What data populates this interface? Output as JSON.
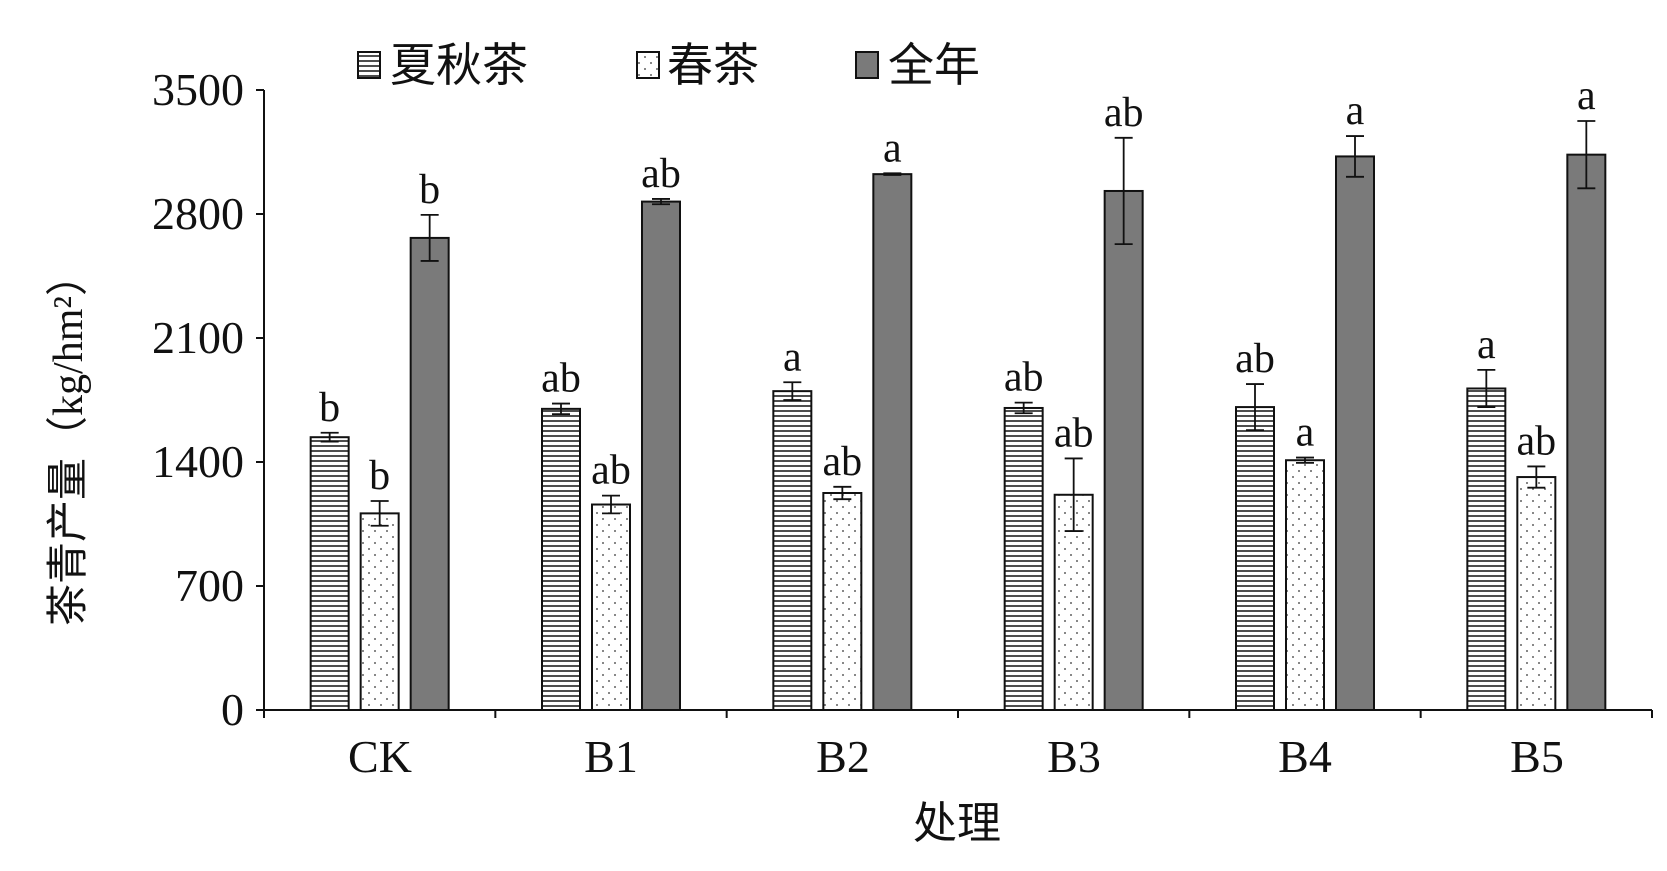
{
  "chart_data": {
    "type": "bar",
    "ylabel": "茶青产量（kg/hm²）",
    "xlabel": "处理",
    "categories": [
      "CK",
      "B1",
      "B2",
      "B3",
      "B4",
      "B5"
    ],
    "ylim": [
      0,
      3500
    ],
    "yticks": [
      "0",
      "700",
      "1400",
      "2100",
      "2800",
      "3500"
    ],
    "legend_position": "top",
    "series": [
      {
        "name": "夏秋茶",
        "pattern": "horizontal-lines",
        "color": "#ffffff",
        "values": [
          1540,
          1700,
          1800,
          1705,
          1710,
          1815
        ],
        "errors": [
          25,
          30,
          50,
          30,
          130,
          105
        ],
        "labels": [
          "b",
          "ab",
          "a",
          "ab",
          "ab",
          "a"
        ]
      },
      {
        "name": "春茶",
        "pattern": "dots",
        "color": "#ffffff",
        "values": [
          1110,
          1160,
          1225,
          1215,
          1410,
          1315
        ],
        "errors": [
          70,
          50,
          35,
          205,
          15,
          60
        ],
        "labels": [
          "b",
          "ab",
          "ab",
          "ab",
          "a",
          "ab"
        ]
      },
      {
        "name": "全年",
        "pattern": "solid",
        "color": "#7a7a7a",
        "values": [
          2665,
          2870,
          3025,
          2930,
          3125,
          3135
        ],
        "errors": [
          130,
          15,
          5,
          300,
          115,
          190
        ],
        "labels": [
          "b",
          "ab",
          "a",
          "ab",
          "a",
          "a"
        ]
      }
    ]
  }
}
